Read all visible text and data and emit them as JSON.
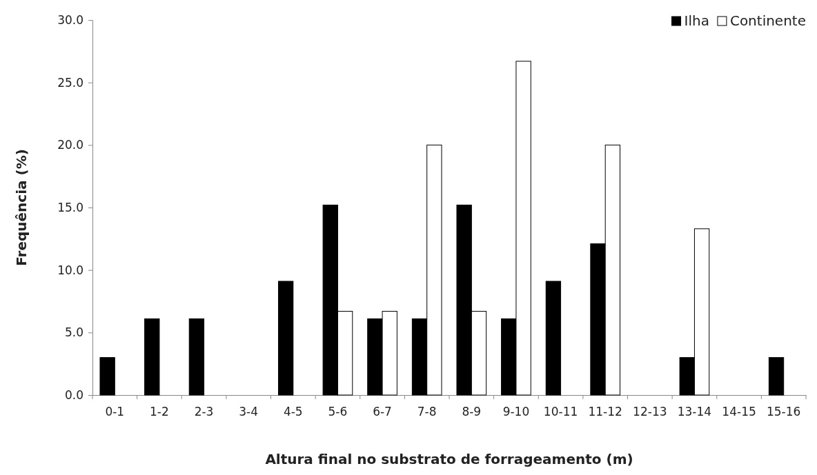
{
  "chart_data": {
    "type": "bar",
    "xlabel": "Altura final no substrato de forrageamento (m)",
    "ylabel": "Frequência (%)",
    "categories": [
      "0-1",
      "1-2",
      "2-3",
      "3-4",
      "4-5",
      "5-6",
      "6-7",
      "7-8",
      "8-9",
      "9-10",
      "10-11",
      "11-12",
      "12-13",
      "13-14",
      "14-15",
      "15-16"
    ],
    "series": [
      {
        "name": "Ilha",
        "color": "#000000",
        "values": [
          3.0,
          6.1,
          6.1,
          0,
          9.1,
          15.2,
          6.1,
          6.1,
          15.2,
          6.1,
          9.1,
          12.1,
          0,
          3.0,
          0,
          3.0
        ]
      },
      {
        "name": "Continente",
        "color": "#ffffff",
        "values": [
          0,
          0,
          0,
          0,
          0,
          6.7,
          6.7,
          20.0,
          6.7,
          26.7,
          0,
          20.0,
          0,
          13.3,
          0,
          0
        ]
      }
    ],
    "ylim": [
      0,
      30
    ],
    "yticks": [
      {
        "value": 0,
        "label": "0.0"
      },
      {
        "value": 5,
        "label": "5.0"
      },
      {
        "value": 10,
        "label": "10.0"
      },
      {
        "value": 15,
        "label": "15.0"
      },
      {
        "value": 20,
        "label": "20.0"
      },
      {
        "value": 25,
        "label": "25.0"
      },
      {
        "value": 30,
        "label": "30.0"
      }
    ],
    "grid": false,
    "legend": "top right"
  }
}
